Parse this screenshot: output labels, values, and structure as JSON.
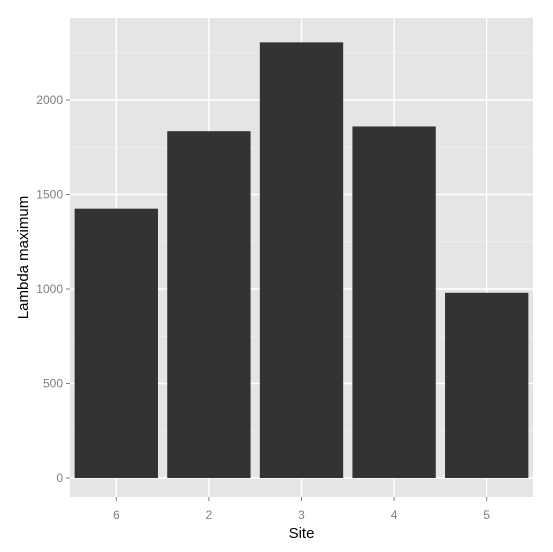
{
  "chart_data": {
    "type": "bar",
    "title": "",
    "xlabel": "Site",
    "ylabel": "Lambda maximum",
    "categories": [
      "6",
      "2",
      "3",
      "4",
      "5"
    ],
    "values": [
      1425,
      1835,
      2305,
      1860,
      980
    ],
    "ylim": [
      0,
      2330
    ],
    "yticks": [
      0,
      500,
      1000,
      1500,
      2000
    ],
    "ytick_labels": [
      "0",
      "500",
      "1000",
      "1500",
      "2000"
    ],
    "grid": true,
    "legend": "none",
    "colors": {
      "panel_background": "#e5e5e5",
      "grid_major": "#ffffff",
      "grid_minor": "#f2f2f2",
      "bar_fill": "#333333",
      "tick_label": "#7f7f7f",
      "tick_mark": "#7f7f7f",
      "axis_title": "#000000"
    }
  }
}
